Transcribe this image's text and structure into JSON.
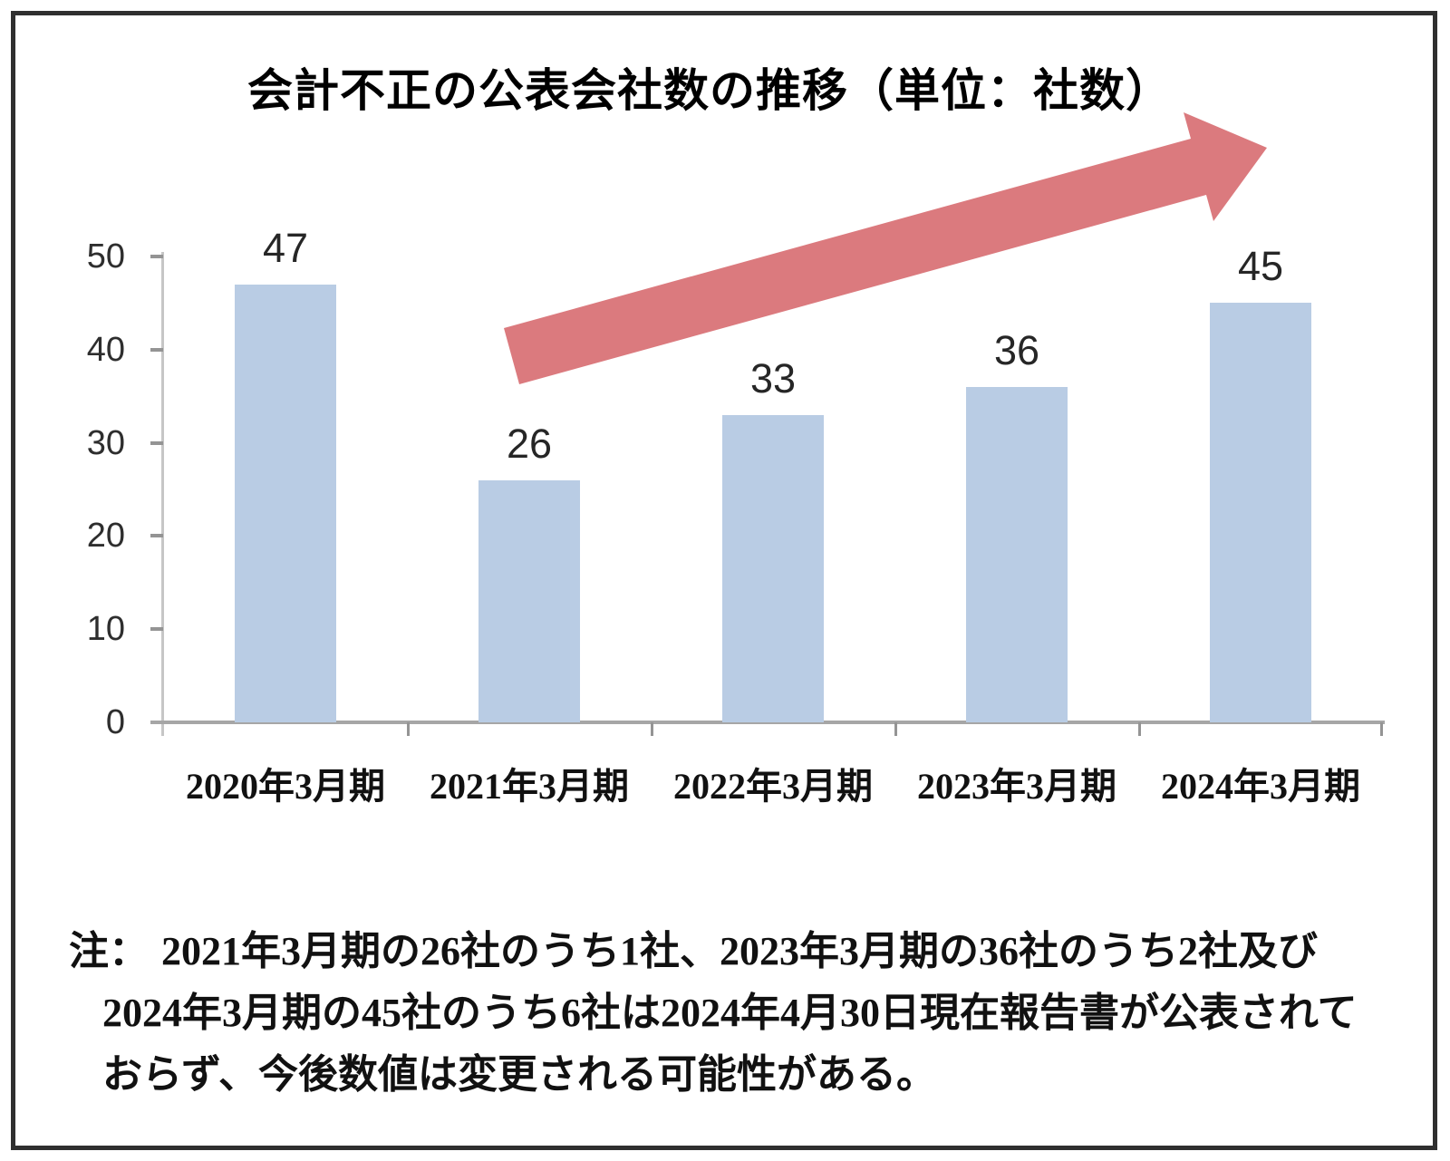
{
  "page": {
    "kind": "static bar chart figure with footnote"
  },
  "chart_data": {
    "type": "bar",
    "title": "会計不正の公表会社数の推移（単位：社数）",
    "categories": [
      "2020年3月期",
      "2021年3月期",
      "2022年3月期",
      "2023年3月期",
      "2024年3月期"
    ],
    "values": [
      47,
      26,
      33,
      36,
      45
    ],
    "xlabel": "",
    "ylabel": "",
    "ylim": [
      0,
      50
    ],
    "yticks": [
      0,
      10,
      20,
      30,
      40,
      50
    ],
    "grid": false,
    "legend": "none",
    "bar_color": "#b9cce4",
    "axis_color": "#a6a6a6",
    "tick_color": "#949494",
    "annotation": {
      "type": "block-arrow",
      "direction": "up-right",
      "meaning": "upward trend",
      "color": "#db7a7e"
    }
  },
  "note": {
    "label": "注：",
    "lines": [
      "2021年3月期の26社のうち1社、2023年3月期の36社のうち2社及び",
      "2024年3月期の45社のうち6社は2024年4月30日現在報告書が公表されて",
      "おらず、今後数値は変更される可能性がある。"
    ]
  }
}
